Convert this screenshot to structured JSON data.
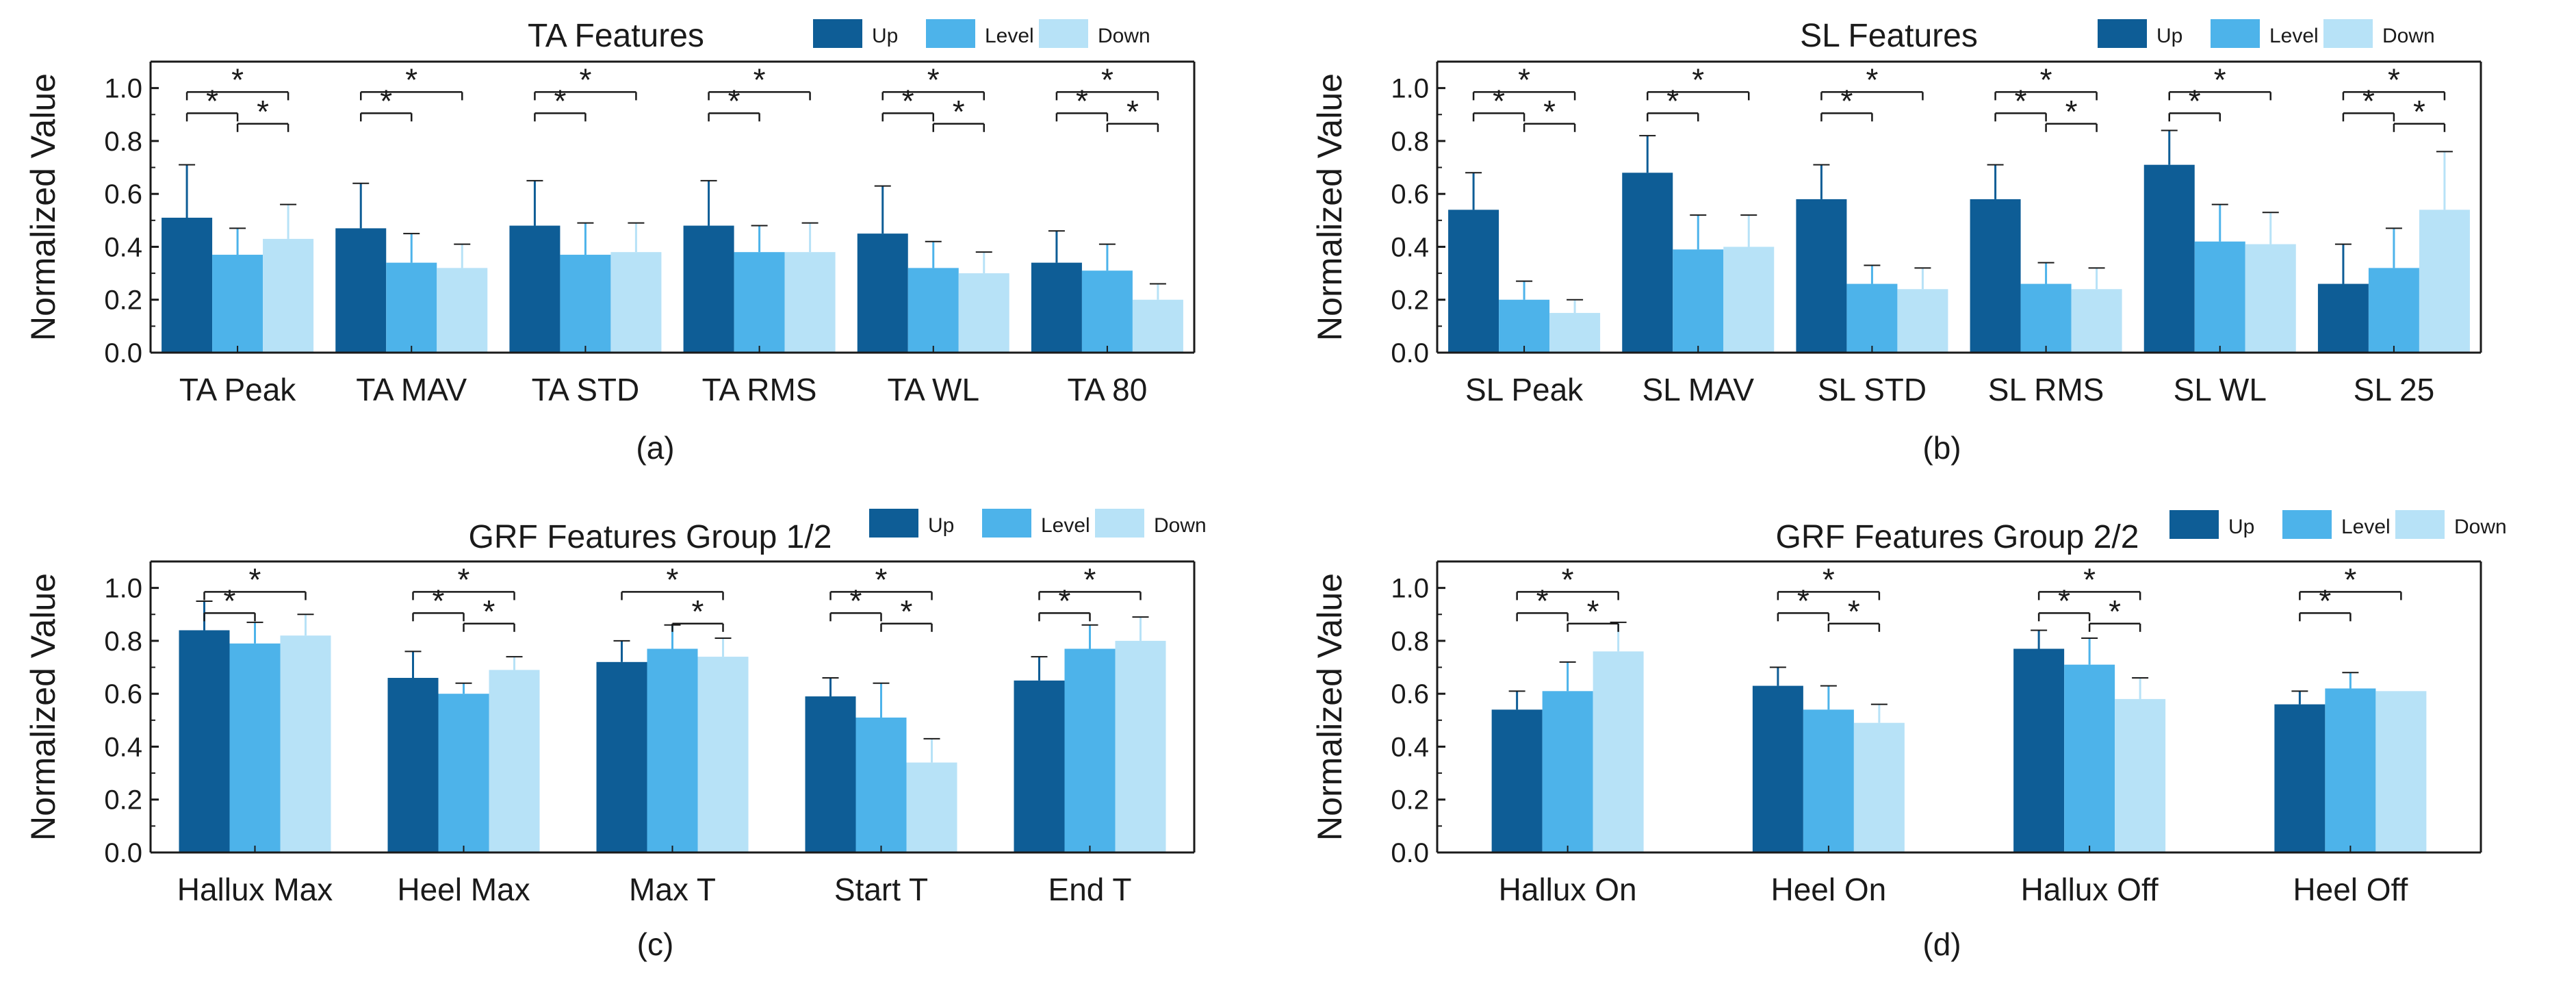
{
  "chart_data": [
    {
      "type": "bar",
      "caption": "(a)",
      "title": "TA Features",
      "xlabel": "",
      "ylabel": "Normalized Value",
      "ylim": [
        0,
        1.1
      ],
      "yticks": [
        "0.0",
        "0.2",
        "0.4",
        "0.6",
        "0.8",
        "1.0"
      ],
      "categories": [
        "TA Peak",
        "TA MAV",
        "TA STD",
        "TA RMS",
        "TA WL",
        "TA 80"
      ],
      "series": [
        {
          "name": "Up",
          "color": "#0e5d96",
          "values": [
            0.51,
            0.47,
            0.48,
            0.48,
            0.45,
            0.34
          ],
          "errors": [
            0.2,
            0.17,
            0.17,
            0.17,
            0.18,
            0.12
          ]
        },
        {
          "name": "Level",
          "color": "#4db3ea",
          "values": [
            0.37,
            0.34,
            0.37,
            0.38,
            0.32,
            0.31
          ],
          "errors": [
            0.1,
            0.11,
            0.12,
            0.1,
            0.1,
            0.1
          ]
        },
        {
          "name": "Down",
          "color": "#b7e2f7",
          "values": [
            0.43,
            0.32,
            0.38,
            0.38,
            0.3,
            0.2
          ],
          "errors": [
            0.13,
            0.09,
            0.11,
            0.11,
            0.08,
            0.06
          ]
        }
      ],
      "significance": [
        {
          "category": 0,
          "from": 0,
          "to": 1,
          "label": "*"
        },
        {
          "category": 0,
          "from": 0,
          "to": 2,
          "label": "*"
        },
        {
          "category": 0,
          "from": 1,
          "to": 2,
          "label": "*"
        },
        {
          "category": 1,
          "from": 0,
          "to": 1,
          "label": "*"
        },
        {
          "category": 1,
          "from": 0,
          "to": 2,
          "label": "*"
        },
        {
          "category": 2,
          "from": 0,
          "to": 1,
          "label": "*"
        },
        {
          "category": 2,
          "from": 0,
          "to": 2,
          "label": "*"
        },
        {
          "category": 3,
          "from": 0,
          "to": 1,
          "label": "*"
        },
        {
          "category": 3,
          "from": 0,
          "to": 2,
          "label": "*"
        },
        {
          "category": 4,
          "from": 0,
          "to": 1,
          "label": "*"
        },
        {
          "category": 4,
          "from": 0,
          "to": 2,
          "label": "*"
        },
        {
          "category": 4,
          "from": 1,
          "to": 2,
          "label": "*"
        },
        {
          "category": 5,
          "from": 0,
          "to": 1,
          "label": "*"
        },
        {
          "category": 5,
          "from": 0,
          "to": 2,
          "label": "*"
        },
        {
          "category": 5,
          "from": 1,
          "to": 2,
          "label": "*"
        }
      ]
    },
    {
      "type": "bar",
      "caption": "(b)",
      "title": "SL Features",
      "xlabel": "",
      "ylabel": "Normalized Value",
      "ylim": [
        0,
        1.1
      ],
      "yticks": [
        "0.0",
        "0.2",
        "0.4",
        "0.6",
        "0.8",
        "1.0"
      ],
      "categories": [
        "SL Peak",
        "SL MAV",
        "SL STD",
        "SL RMS",
        "SL WL",
        "SL 25"
      ],
      "series": [
        {
          "name": "Up",
          "color": "#0e5d96",
          "values": [
            0.54,
            0.68,
            0.58,
            0.58,
            0.71,
            0.26
          ],
          "errors": [
            0.14,
            0.14,
            0.13,
            0.13,
            0.13,
            0.15
          ]
        },
        {
          "name": "Level",
          "color": "#4db3ea",
          "values": [
            0.2,
            0.39,
            0.26,
            0.26,
            0.42,
            0.32
          ],
          "errors": [
            0.07,
            0.13,
            0.07,
            0.08,
            0.14,
            0.15
          ]
        },
        {
          "name": "Down",
          "color": "#b7e2f7",
          "values": [
            0.15,
            0.4,
            0.24,
            0.24,
            0.41,
            0.54
          ],
          "errors": [
            0.05,
            0.12,
            0.08,
            0.08,
            0.12,
            0.22
          ]
        }
      ],
      "significance": [
        {
          "category": 0,
          "from": 0,
          "to": 1,
          "label": "*"
        },
        {
          "category": 0,
          "from": 0,
          "to": 2,
          "label": "*"
        },
        {
          "category": 0,
          "from": 1,
          "to": 2,
          "label": "*"
        },
        {
          "category": 1,
          "from": 0,
          "to": 1,
          "label": "*"
        },
        {
          "category": 1,
          "from": 0,
          "to": 2,
          "label": "*"
        },
        {
          "category": 2,
          "from": 0,
          "to": 1,
          "label": "*"
        },
        {
          "category": 2,
          "from": 0,
          "to": 2,
          "label": "*"
        },
        {
          "category": 3,
          "from": 0,
          "to": 1,
          "label": "*"
        },
        {
          "category": 3,
          "from": 0,
          "to": 2,
          "label": "*"
        },
        {
          "category": 3,
          "from": 1,
          "to": 2,
          "label": "*"
        },
        {
          "category": 4,
          "from": 0,
          "to": 1,
          "label": "*"
        },
        {
          "category": 4,
          "from": 0,
          "to": 2,
          "label": "*"
        },
        {
          "category": 5,
          "from": 0,
          "to": 1,
          "label": "*"
        },
        {
          "category": 5,
          "from": 0,
          "to": 2,
          "label": "*"
        },
        {
          "category": 5,
          "from": 1,
          "to": 2,
          "label": "*"
        }
      ]
    },
    {
      "type": "bar",
      "caption": "(c)",
      "title": "GRF Features Group 1/2",
      "xlabel": "",
      "ylabel": "Normalized Value",
      "ylim": [
        0,
        1.1
      ],
      "yticks": [
        "0.0",
        "0.2",
        "0.4",
        "0.6",
        "0.8",
        "1.0"
      ],
      "categories": [
        "Hallux Max",
        "Heel Max",
        "Max T",
        "Start T",
        "End T"
      ],
      "series": [
        {
          "name": "Up",
          "color": "#0e5d96",
          "values": [
            0.84,
            0.66,
            0.72,
            0.59,
            0.65
          ],
          "errors": [
            0.11,
            0.1,
            0.08,
            0.07,
            0.09
          ]
        },
        {
          "name": "Level",
          "color": "#4db3ea",
          "values": [
            0.79,
            0.6,
            0.77,
            0.51,
            0.77
          ],
          "errors": [
            0.08,
            0.04,
            0.09,
            0.13,
            0.09
          ]
        },
        {
          "name": "Down",
          "color": "#b7e2f7",
          "values": [
            0.82,
            0.69,
            0.74,
            0.34,
            0.8
          ],
          "errors": [
            0.08,
            0.05,
            0.07,
            0.09,
            0.09
          ]
        }
      ],
      "significance": [
        {
          "category": 0,
          "from": 0,
          "to": 1,
          "label": "*"
        },
        {
          "category": 0,
          "from": 0,
          "to": 2,
          "label": "*"
        },
        {
          "category": 1,
          "from": 0,
          "to": 1,
          "label": "*"
        },
        {
          "category": 1,
          "from": 0,
          "to": 2,
          "label": "*"
        },
        {
          "category": 1,
          "from": 1,
          "to": 2,
          "label": "*"
        },
        {
          "category": 2,
          "from": 0,
          "to": 2,
          "label": "*"
        },
        {
          "category": 2,
          "from": 1,
          "to": 2,
          "label": "*"
        },
        {
          "category": 3,
          "from": 0,
          "to": 1,
          "label": "*"
        },
        {
          "category": 3,
          "from": 0,
          "to": 2,
          "label": "*"
        },
        {
          "category": 3,
          "from": 1,
          "to": 2,
          "label": "*"
        },
        {
          "category": 4,
          "from": 0,
          "to": 1,
          "label": "*"
        },
        {
          "category": 4,
          "from": 0,
          "to": 2,
          "label": "*"
        }
      ]
    },
    {
      "type": "bar",
      "caption": "(d)",
      "title": "GRF Features Group 2/2",
      "xlabel": "",
      "ylabel": "Normalized Value",
      "ylim": [
        0,
        1.1
      ],
      "yticks": [
        "0.0",
        "0.2",
        "0.4",
        "0.6",
        "0.8",
        "1.0"
      ],
      "categories": [
        "Hallux On",
        "Heel On",
        "Hallux Off",
        "Heel Off"
      ],
      "series": [
        {
          "name": "Up",
          "color": "#0e5d96",
          "values": [
            0.54,
            0.63,
            0.77,
            0.56
          ],
          "errors": [
            0.07,
            0.07,
            0.07,
            0.05
          ]
        },
        {
          "name": "Level",
          "color": "#4db3ea",
          "values": [
            0.61,
            0.54,
            0.71,
            0.62
          ],
          "errors": [
            0.11,
            0.09,
            0.1,
            0.06
          ]
        },
        {
          "name": "Down",
          "color": "#b7e2f7",
          "values": [
            0.76,
            0.49,
            0.58,
            0.61
          ],
          "errors": [
            0.11,
            0.07,
            0.08,
            0.0
          ]
        }
      ],
      "significance": [
        {
          "category": 0,
          "from": 0,
          "to": 1,
          "label": "*"
        },
        {
          "category": 0,
          "from": 0,
          "to": 2,
          "label": "*"
        },
        {
          "category": 0,
          "from": 1,
          "to": 2,
          "label": "*"
        },
        {
          "category": 1,
          "from": 0,
          "to": 1,
          "label": "*"
        },
        {
          "category": 1,
          "from": 0,
          "to": 2,
          "label": "*"
        },
        {
          "category": 1,
          "from": 1,
          "to": 2,
          "label": "*"
        },
        {
          "category": 2,
          "from": 0,
          "to": 1,
          "label": "*"
        },
        {
          "category": 2,
          "from": 0,
          "to": 2,
          "label": "*"
        },
        {
          "category": 2,
          "from": 1,
          "to": 2,
          "label": "*"
        },
        {
          "category": 3,
          "from": 0,
          "to": 1,
          "label": "*"
        },
        {
          "category": 3,
          "from": 0,
          "to": 2,
          "label": "*"
        }
      ]
    }
  ]
}
